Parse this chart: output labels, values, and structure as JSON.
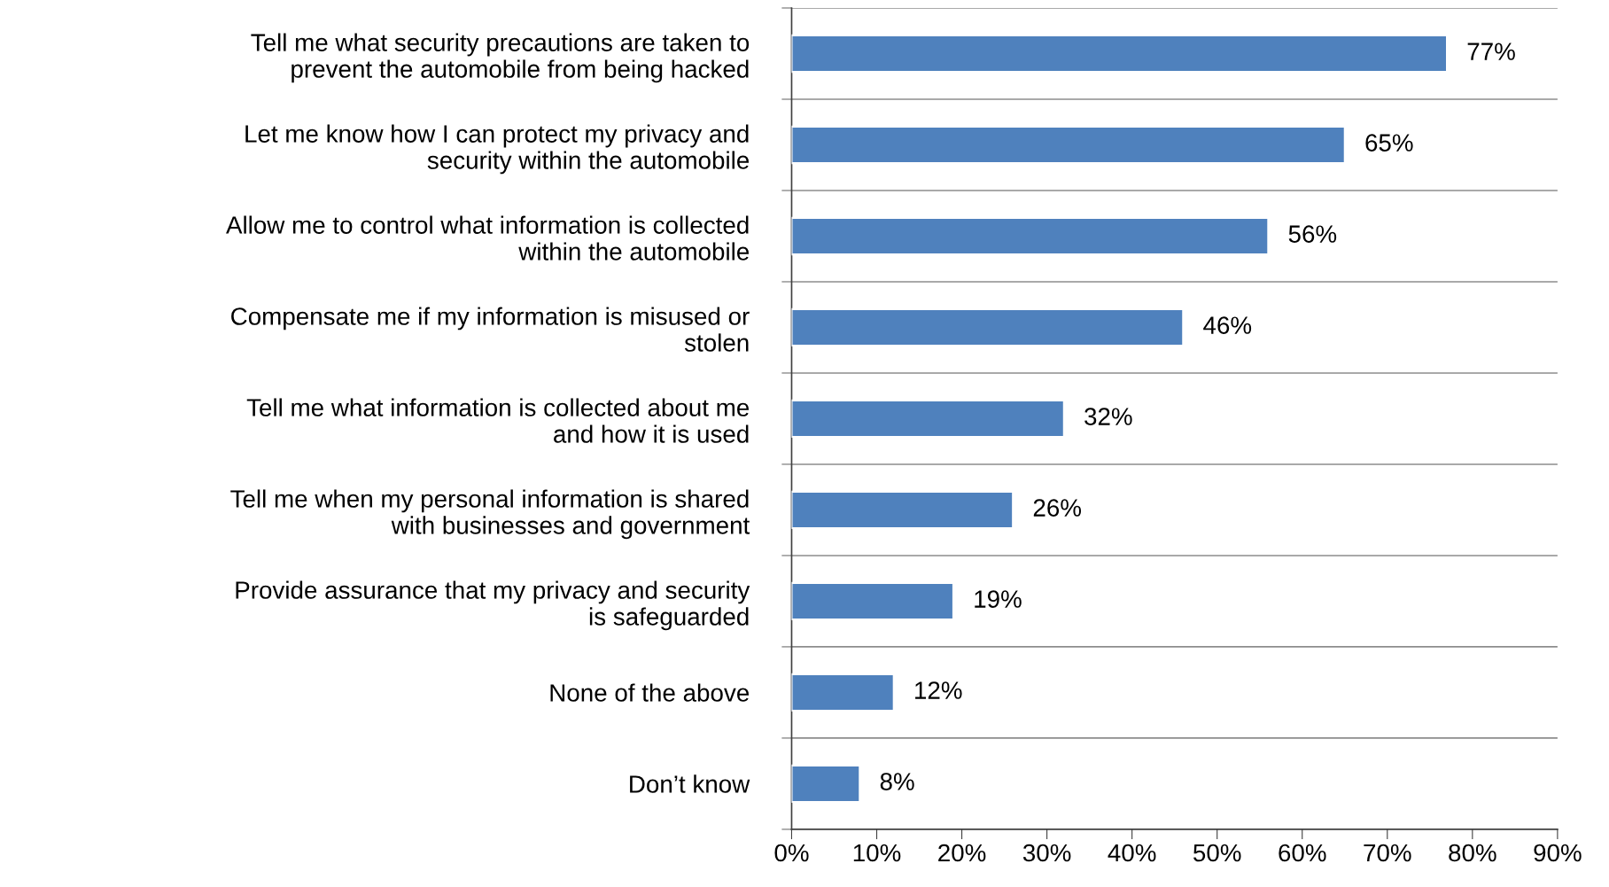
{
  "chart_data": {
    "type": "bar",
    "orientation": "horizontal",
    "categories": [
      "Tell me what security precautions are taken to\nprevent the automobile from being hacked",
      "Let me know how I can protect my privacy and\nsecurity within the automobile",
      "Allow me to control what information is collected\nwithin the automobile",
      "Compensate me if my information is misused or\nstolen",
      "Tell me what information is collected about me\nand how it is used",
      "Tell me when my personal information is shared\nwith businesses and government",
      "Provide assurance that my privacy and security\nis safeguarded",
      "None of the above",
      "Don’t know"
    ],
    "values": [
      77,
      65,
      56,
      46,
      32,
      26,
      19,
      12,
      8
    ],
    "value_labels": [
      "77%",
      "65%",
      "56%",
      "46%",
      "32%",
      "26%",
      "19%",
      "12%",
      "8%"
    ],
    "color": "#4f81bd",
    "xlim": [
      0,
      90
    ],
    "xticks": [
      {
        "value": 0,
        "label": "0%"
      },
      {
        "value": 10,
        "label": "10%"
      },
      {
        "value": 20,
        "label": "20%"
      },
      {
        "value": 30,
        "label": "30%"
      },
      {
        "value": 40,
        "label": "40%"
      },
      {
        "value": 50,
        "label": "50%"
      },
      {
        "value": 60,
        "label": "60%"
      },
      {
        "value": 70,
        "label": "70%"
      },
      {
        "value": 80,
        "label": "80%"
      },
      {
        "value": 90,
        "label": "90%"
      }
    ],
    "grid": "y"
  }
}
